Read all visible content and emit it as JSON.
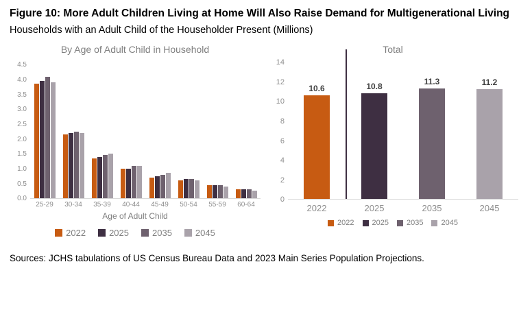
{
  "figure": {
    "title": "Figure 10: More Adult Children Living at Home Will Also Raise Demand for Multigenerational Living",
    "subtitle": "Households with an Adult Child of the Householder Present (Millions)",
    "source": "Sources: JCHS tabulations of US Census Bureau Data and 2023 Main Series Population Projections."
  },
  "colors": {
    "y2022": "#C75B12",
    "y2025": "#3E2F42",
    "y2035": "#6E616E",
    "y2045": "#A9A2AA",
    "axis_line": "#D9D9D9",
    "tick_text": "#8E8E8E"
  },
  "chart_data": [
    {
      "type": "bar",
      "title": "By Age of Adult Child in Household",
      "xlabel": "Age of Adult Child",
      "categories": [
        "25-29",
        "30-34",
        "35-39",
        "40-44",
        "45-49",
        "50-54",
        "55-59",
        "60-64"
      ],
      "series": [
        {
          "name": "2022",
          "color": "#C75B12",
          "values": [
            3.85,
            2.15,
            1.35,
            1.0,
            0.7,
            0.6,
            0.45,
            0.3
          ]
        },
        {
          "name": "2025",
          "color": "#3E2F42",
          "values": [
            3.95,
            2.2,
            1.4,
            1.0,
            0.75,
            0.65,
            0.45,
            0.3
          ]
        },
        {
          "name": "2035",
          "color": "#6E616E",
          "values": [
            4.1,
            2.25,
            1.45,
            1.1,
            0.8,
            0.65,
            0.45,
            0.3
          ]
        },
        {
          "name": "2045",
          "color": "#A9A2AA",
          "values": [
            3.9,
            2.2,
            1.5,
            1.1,
            0.85,
            0.6,
            0.4,
            0.25
          ]
        }
      ],
      "ylim": [
        0,
        4.5
      ],
      "yticks": [
        "0.0",
        "0.5",
        "1.0",
        "1.5",
        "2.0",
        "2.5",
        "3.0",
        "3.5",
        "4.0",
        "4.5"
      ],
      "legend": [
        {
          "label": "2022",
          "color": "#C75B12"
        },
        {
          "label": "2025",
          "color": "#3E2F42"
        },
        {
          "label": "2035",
          "color": "#6E616E"
        },
        {
          "label": "2045",
          "color": "#A9A2AA"
        }
      ],
      "grid": false,
      "legend_position": "bottom"
    },
    {
      "type": "bar",
      "title": "Total",
      "xlabel": "",
      "categories": [
        "2022",
        "2025",
        "2035",
        "2045"
      ],
      "series": [
        {
          "name": "Total",
          "values": [
            10.6,
            10.8,
            11.3,
            11.2
          ]
        }
      ],
      "bar_colors": [
        "#C75B12",
        "#3E2F42",
        "#6E616E",
        "#A9A2AA"
      ],
      "show_values": true,
      "ylim": [
        0,
        14
      ],
      "yticks": [
        "0",
        "2",
        "4",
        "6",
        "8",
        "10",
        "12",
        "14"
      ],
      "divider": {
        "after_category_index": 0,
        "color": "#3E2F42"
      },
      "legend": [
        {
          "label": "2022",
          "color": "#C75B12"
        },
        {
          "label": "2025",
          "color": "#3E2F42"
        },
        {
          "label": "2035",
          "color": "#6E616E"
        },
        {
          "label": "2045",
          "color": "#A9A2AA"
        }
      ],
      "grid": false,
      "legend_position": "bottom"
    }
  ]
}
